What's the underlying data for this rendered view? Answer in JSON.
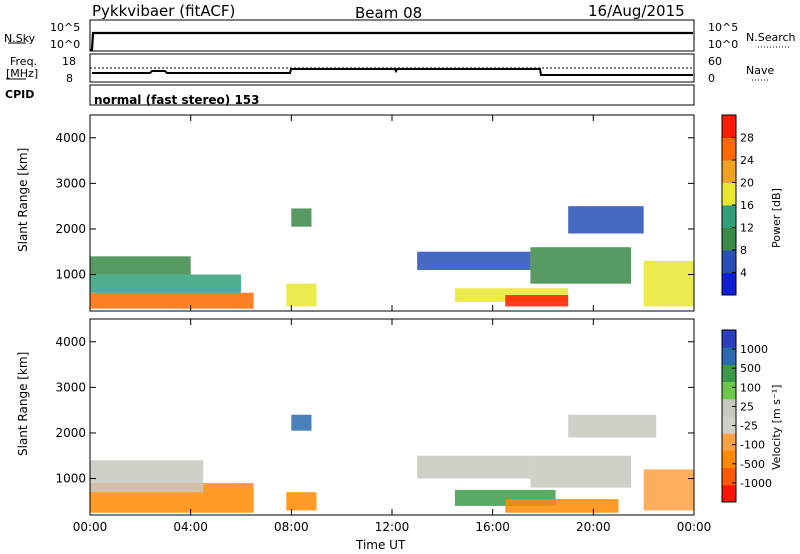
{
  "header": {
    "station": "Pykkvibaer (fitACF)",
    "beam": "Beam 08",
    "date": "16/Aug/2015"
  },
  "top_panels": {
    "nsky_label": "N.Sky",
    "nsky_ticks": [
      "10^5",
      "10^0"
    ],
    "nsearch_label": "N.Search",
    "nsearch_ticks": [
      "10^5",
      "10^0"
    ],
    "freq_label_1": "Freq.",
    "freq_label_2": "[MHz]",
    "freq_ticks": [
      "18",
      "8"
    ],
    "nave_label": "Nave",
    "nave_ticks": [
      "60",
      "0"
    ],
    "cpid_label": "CPID",
    "cpid_text": "normal (fast stereo) 153"
  },
  "colors": {
    "power_scale": [
      "#0b1fd6",
      "#2650b8",
      "#3a8a48",
      "#2fa07a",
      "#e8e830",
      "#f2a020",
      "#ff6a00",
      "#ff1a00"
    ],
    "velocity_scale": [
      "#2a3fc0",
      "#2a6ab0",
      "#3a9a48",
      "#6ac848",
      "#c8c8c0",
      "#d0d0c8",
      "#ffa040",
      "#ff8a00",
      "#ff5a00",
      "#ff1400"
    ]
  },
  "chart_data": [
    {
      "type": "heatmap",
      "title": "",
      "xlabel": "",
      "ylabel": "Slant Range [km]",
      "x_ticks": [
        "00:00",
        "04:00",
        "08:00",
        "12:00",
        "16:00",
        "20:00",
        "00:00"
      ],
      "y_ticks": [
        "1000",
        "2000",
        "3000",
        "4000"
      ],
      "ylim": [
        200,
        4500
      ],
      "colorbar_label": "Power [dB]",
      "colorbar_ticks": [
        "4",
        "8",
        "12",
        "16",
        "20",
        "24",
        "28"
      ],
      "colorbar_range": [
        0,
        30
      ],
      "regions": [
        {
          "t0": 0.0,
          "t1": 6.5,
          "r0": 250,
          "r1": 600,
          "level": 26
        },
        {
          "t0": 0.0,
          "t1": 6.0,
          "r0": 600,
          "r1": 1000,
          "level": 14
        },
        {
          "t0": 0.0,
          "t1": 4.0,
          "r0": 1000,
          "r1": 1400,
          "level": 8
        },
        {
          "t0": 7.8,
          "t1": 9.0,
          "r0": 300,
          "r1": 800,
          "level": 18
        },
        {
          "t0": 8.0,
          "t1": 8.8,
          "r0": 2050,
          "r1": 2450,
          "level": 8
        },
        {
          "t0": 13.0,
          "t1": 17.5,
          "r0": 1100,
          "r1": 1500,
          "level": 6
        },
        {
          "t0": 14.5,
          "t1": 19.0,
          "r0": 400,
          "r1": 700,
          "level": 18
        },
        {
          "t0": 16.5,
          "t1": 19.0,
          "r0": 300,
          "r1": 550,
          "level": 27
        },
        {
          "t0": 17.5,
          "t1": 21.5,
          "r0": 800,
          "r1": 1600,
          "level": 10
        },
        {
          "t0": 19.0,
          "t1": 22.0,
          "r0": 1900,
          "r1": 2500,
          "level": 7
        },
        {
          "t0": 22.0,
          "t1": 24.0,
          "r0": 300,
          "r1": 1300,
          "level": 15
        }
      ]
    },
    {
      "type": "heatmap",
      "title": "",
      "xlabel": "Time UT",
      "ylabel": "Slant Range [km]",
      "x_ticks": [
        "00:00",
        "04:00",
        "08:00",
        "12:00",
        "16:00",
        "20:00",
        "00:00"
      ],
      "y_ticks": [
        "1000",
        "2000",
        "3000",
        "4000"
      ],
      "ylim": [
        200,
        4500
      ],
      "colorbar_label": "Velocity [m s⁻¹]",
      "colorbar_ticks": [
        "1000",
        "500",
        "100",
        "25",
        "-25",
        "-100",
        "-500",
        "-1000"
      ],
      "regions": [
        {
          "t0": 0.0,
          "t1": 6.5,
          "r0": 250,
          "r1": 900,
          "level": -250
        },
        {
          "t0": 0.0,
          "t1": 4.5,
          "r0": 700,
          "r1": 1400,
          "level": 0
        },
        {
          "t0": 7.8,
          "t1": 9.0,
          "r0": 300,
          "r1": 700,
          "level": -150
        },
        {
          "t0": 8.0,
          "t1": 8.8,
          "r0": 2050,
          "r1": 2400,
          "level": 700
        },
        {
          "t0": 13.0,
          "t1": 17.5,
          "r0": 1000,
          "r1": 1500,
          "level": 0
        },
        {
          "t0": 14.5,
          "t1": 18.5,
          "r0": 400,
          "r1": 750,
          "level": 200
        },
        {
          "t0": 16.5,
          "t1": 21.0,
          "r0": 250,
          "r1": 550,
          "level": -150
        },
        {
          "t0": 17.5,
          "t1": 21.5,
          "r0": 800,
          "r1": 1500,
          "level": 0
        },
        {
          "t0": 19.0,
          "t1": 22.5,
          "r0": 1900,
          "r1": 2400,
          "level": 0
        },
        {
          "t0": 22.0,
          "t1": 24.0,
          "r0": 300,
          "r1": 1200,
          "level": -100
        }
      ]
    }
  ]
}
